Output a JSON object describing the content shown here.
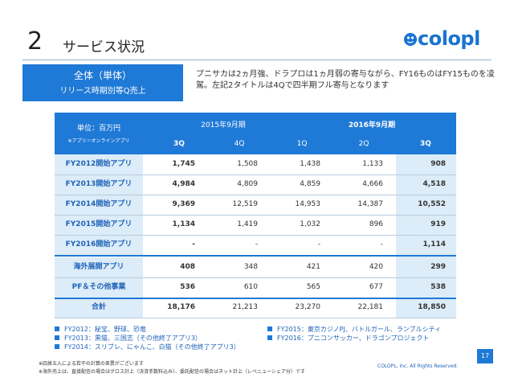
{
  "title": {
    "number": "2",
    "text": "サービス状況"
  },
  "logo": {
    "text": "colopl"
  },
  "badge": {
    "line1": "全体（単体）",
    "line2": "リリース時期別等Q売上"
  },
  "note": "プニサカは2ヵ月強、ドラプロは1ヵ月弱の寄与ながら、FY16ものはFY15ものを凌駕。左記2タイトルは4Qで四半期フル寄与となります",
  "table": {
    "unit": "単位：百万円",
    "unit_note": "※アプリ＝オンラインアプリ",
    "year_2015": "2015年9月期",
    "year_2016": "2016年9月期",
    "quarters": [
      "3Q",
      "4Q",
      "1Q",
      "2Q",
      "3Q"
    ],
    "rows": [
      {
        "label": "FY2012開始アプリ",
        "values": [
          "1,745",
          "1,508",
          "1,438",
          "1,133",
          "908"
        ]
      },
      {
        "label": "FY2013開始アプリ",
        "values": [
          "4,984",
          "4,809",
          "4,859",
          "4,666",
          "4,518"
        ]
      },
      {
        "label": "FY2014開始アプリ",
        "values": [
          "9,369",
          "12,519",
          "14,953",
          "14,387",
          "10,552"
        ]
      },
      {
        "label": "FY2015開始アプリ",
        "values": [
          "1,134",
          "1,419",
          "1,032",
          "896",
          "919"
        ]
      },
      {
        "label": "FY2016開始アプリ",
        "values": [
          "-",
          "-",
          "-",
          "-",
          "1,114"
        ]
      },
      {
        "label": "海外展開アプリ",
        "values": [
          "408",
          "348",
          "421",
          "420",
          "299"
        ]
      },
      {
        "label": "PF＆その他事業",
        "values": [
          "536",
          "610",
          "565",
          "677",
          "538"
        ]
      },
      {
        "label": "合計",
        "values": [
          "18,176",
          "21,213",
          "23,270",
          "22,181",
          "18,850"
        ]
      }
    ]
  },
  "legend_left": [
    "FY2012：秘宝、野球、恐竜",
    "FY2013：黒猫、三国志（その他終了アプリ3）",
    "FY2014：スリプレ、にゃんこ、白猫（その他終了アプリ3）"
  ],
  "legend_right": [
    "FY2015：東京カジノPJ、バトルガール、ランブルシティ",
    "FY2016：プニコンサッカー、ドラゴンプロジェクト"
  ],
  "footnotes": [
    "※四捨五入による若干の計算の差異がございます",
    "※海外売上は、直接配信の場合はグロス計上（決済手数料込み）、委託配信の場合はネット計上（レベニューシェア分）です"
  ],
  "page_number": "17",
  "copyright": "COLOPL, Inc. All Rights Reserved.",
  "colors": {
    "accent": "#1f79d6",
    "highlight": "#dcecf8",
    "label_text": "#1f62b8"
  }
}
